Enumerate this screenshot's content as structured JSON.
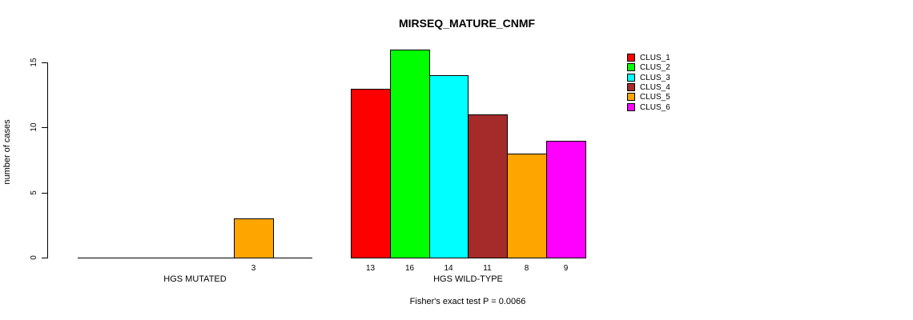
{
  "chart_data": {
    "type": "bar",
    "title": "MIRSEQ_MATURE_CNMF",
    "ylabel": "number of cases",
    "footnote": "Fisher's exact test P = 0.0066",
    "ylim": [
      0,
      15
    ],
    "yticks": [
      0,
      5,
      10,
      15
    ],
    "grid": false,
    "legend_position": "top-right",
    "categories": [
      "HGS MUTATED",
      "HGS WILD-TYPE"
    ],
    "series": [
      {
        "name": "CLUS_1",
        "color": "#FF0000",
        "values": [
          0,
          13
        ]
      },
      {
        "name": "CLUS_2",
        "color": "#00FF00",
        "values": [
          0,
          16
        ]
      },
      {
        "name": "CLUS_3",
        "color": "#00FFFF",
        "values": [
          0,
          14
        ]
      },
      {
        "name": "CLUS_4",
        "color": "#A52A2A",
        "values": [
          0,
          11
        ]
      },
      {
        "name": "CLUS_5",
        "color": "#FFA500",
        "values": [
          3,
          8
        ]
      },
      {
        "name": "CLUS_6",
        "color": "#FF00FF",
        "values": [
          0,
          9
        ]
      }
    ]
  }
}
